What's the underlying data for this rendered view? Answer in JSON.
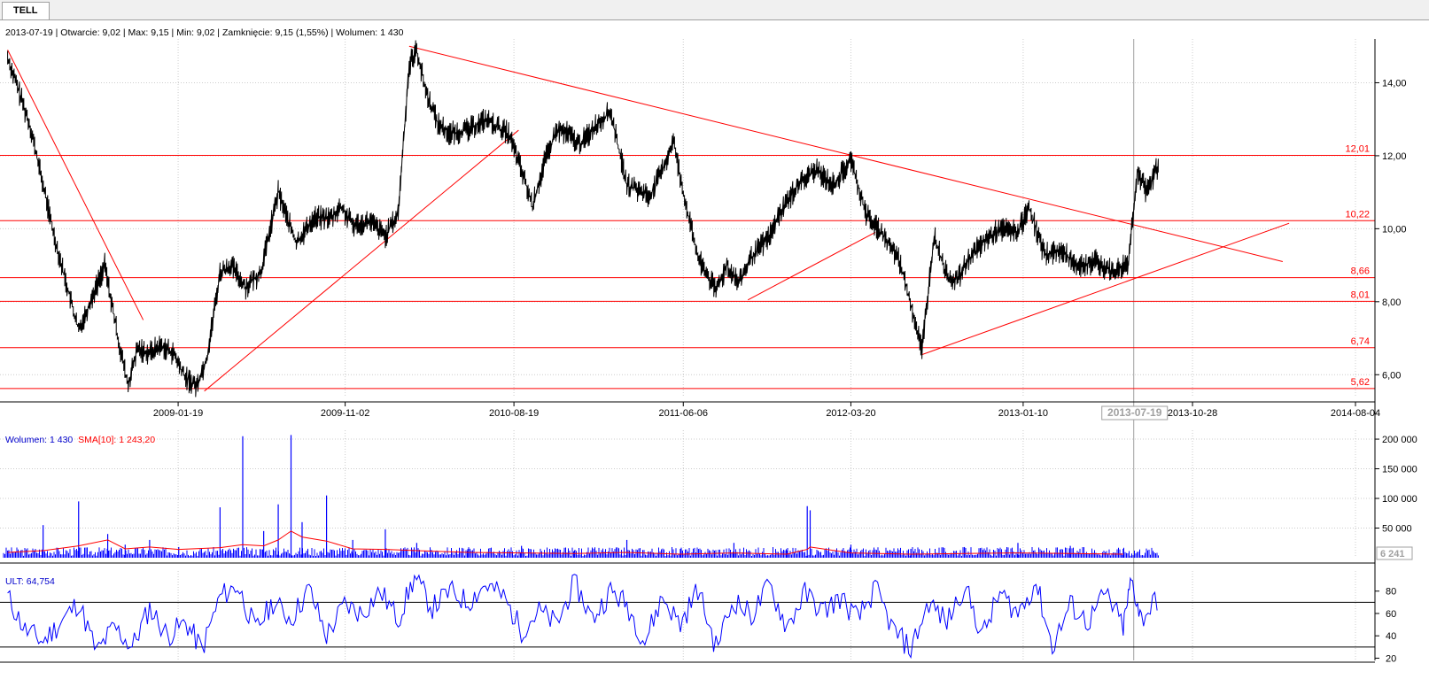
{
  "tab": {
    "label": "TELL"
  },
  "header": {
    "price_info": "2013-07-19 | Otwarcie: 9,02 | Max: 9,15 | Min: 9,02 | Zamknięcie: 9,15 (1,55%) | Wolumen: 1 430",
    "volume_label": "Wolumen: 1 430",
    "sma_label": "SMA[10]: 1 243,20",
    "ult_label": "ULT: 64,754"
  },
  "colors": {
    "price_line": "#000000",
    "trend_line": "#00aa00",
    "support_lines": "#ff0000",
    "volume": "#0000ff",
    "sma": "#ff0000",
    "ult": "#0000ff",
    "crosshair": "#a0a0a0"
  },
  "chart_data": [
    {
      "type": "line",
      "name": "price",
      "y_ticks": [
        "6,00",
        "8,00",
        "10,00",
        "12,00",
        "14,00"
      ],
      "y_tick_values": [
        6,
        8,
        10,
        12,
        14
      ],
      "ylim": [
        5.4,
        15.2
      ],
      "x_ticks": [
        "2009-01-19",
        "2009-11-02",
        "2010-08-19",
        "2011-06-06",
        "2012-03-20",
        "2013-01-10",
        "2013-10-28",
        "2014-08-04"
      ],
      "cursor_label": "2013-07-19",
      "horizontal_levels": [
        {
          "value": 12.01,
          "label": "12,01"
        },
        {
          "value": 10.22,
          "label": "10,22"
        },
        {
          "value": 8.66,
          "label": "8,66"
        },
        {
          "value": 8.01,
          "label": "8,01"
        },
        {
          "value": 6.74,
          "label": "6,74"
        },
        {
          "value": 5.62,
          "label": "5,62"
        }
      ],
      "trend_lines": [
        {
          "x": [
            "2008-04-01",
            "2008-11-20"
          ],
          "y": [
            14.9,
            7.5
          ]
        },
        {
          "x": [
            "2009-03-05",
            "2010-08-27"
          ],
          "y": [
            5.55,
            12.7
          ]
        },
        {
          "x": [
            "2010-02-20",
            "2014-04-01"
          ],
          "y": [
            15.0,
            9.1
          ]
        },
        {
          "x": [
            "2011-09-25",
            "2012-05-01"
          ],
          "y": [
            8.05,
            9.9
          ]
        },
        {
          "x": [
            "2012-07-20",
            "2014-04-12"
          ],
          "y": [
            6.55,
            10.15
          ]
        }
      ],
      "x": [
        "2008-04-01",
        "2008-05-10",
        "2008-06-20",
        "2008-08-01",
        "2008-09-15",
        "2008-10-10",
        "2008-10-25",
        "2008-11-10",
        "2008-12-01",
        "2008-12-20",
        "2009-01-10",
        "2009-02-01",
        "2009-02-20",
        "2009-03-10",
        "2009-04-01",
        "2009-04-20",
        "2009-05-15",
        "2009-06-10",
        "2009-07-10",
        "2009-08-10",
        "2009-09-10",
        "2009-10-10",
        "2009-10-25",
        "2009-11-15",
        "2009-12-15",
        "2010-01-10",
        "2010-02-01",
        "2010-02-20",
        "2010-03-05",
        "2010-03-20",
        "2010-04-10",
        "2010-05-01",
        "2010-06-01",
        "2010-07-01",
        "2010-07-20",
        "2010-08-10",
        "2010-09-01",
        "2010-09-20",
        "2010-10-10",
        "2010-11-01",
        "2010-11-20",
        "2010-12-10",
        "2011-01-10",
        "2011-02-01",
        "2011-03-01",
        "2011-04-10",
        "2011-05-01",
        "2011-05-20",
        "2011-06-10",
        "2011-07-01",
        "2011-08-01",
        "2011-08-20",
        "2011-09-10",
        "2011-10-01",
        "2011-11-01",
        "2011-11-25",
        "2011-12-20",
        "2012-01-20",
        "2012-02-20",
        "2012-03-20",
        "2012-04-15",
        "2012-05-10",
        "2012-06-10",
        "2012-06-30",
        "2012-07-20",
        "2012-08-10",
        "2012-09-01",
        "2012-09-20",
        "2012-10-10",
        "2012-11-01",
        "2012-12-01",
        "2013-01-01",
        "2013-01-20",
        "2013-02-15",
        "2013-03-15",
        "2013-04-15",
        "2013-05-15",
        "2013-06-15",
        "2013-07-10",
        "2013-07-25",
        "2013-08-10",
        "2013-09-01"
      ],
      "y": [
        14.7,
        12.8,
        9.8,
        7.2,
        9.0,
        6.8,
        5.7,
        6.7,
        6.6,
        6.8,
        6.6,
        5.9,
        5.7,
        6.5,
        8.8,
        9.0,
        8.4,
        8.8,
        11.0,
        9.6,
        10.3,
        10.3,
        10.6,
        10.1,
        10.2,
        9.8,
        10.4,
        14.5,
        14.9,
        13.8,
        12.9,
        12.6,
        12.7,
        13.0,
        12.8,
        12.6,
        11.6,
        10.6,
        11.8,
        12.7,
        12.6,
        12.3,
        12.9,
        13.2,
        11.2,
        10.9,
        11.6,
        12.4,
        10.7,
        9.2,
        8.3,
        9.0,
        8.5,
        9.2,
        9.8,
        10.6,
        11.2,
        11.6,
        11.2,
        11.9,
        10.4,
        9.9,
        9.2,
        8.0,
        6.7,
        9.8,
        8.7,
        8.6,
        9.2,
        9.6,
        10.0,
        9.9,
        10.6,
        9.3,
        9.4,
        9.0,
        9.1,
        8.8,
        9.1,
        11.6,
        11.0,
        11.8
      ]
    },
    {
      "type": "bar",
      "name": "volume",
      "y_ticks": [
        "50 000",
        "100 000",
        "150 000",
        "200 000"
      ],
      "y_tick_values": [
        50000,
        100000,
        150000,
        200000
      ],
      "ylim": [
        0,
        215000
      ],
      "last_value_label": "6 241",
      "x": [
        "2008-04-01",
        "2008-06-01",
        "2008-08-01",
        "2008-09-20",
        "2008-10-20",
        "2008-12-01",
        "2009-01-20",
        "2009-04-01",
        "2009-05-10",
        "2009-06-15",
        "2009-07-10",
        "2009-08-01",
        "2009-08-20",
        "2009-10-01",
        "2009-11-15",
        "2010-01-10",
        "2010-03-05",
        "2010-06-01",
        "2010-09-01",
        "2010-12-01",
        "2011-03-01",
        "2011-06-01",
        "2011-09-01",
        "2011-12-01",
        "2012-01-05",
        "2012-01-10",
        "2012-03-20",
        "2012-07-01",
        "2012-10-01",
        "2013-01-01",
        "2013-04-01",
        "2013-07-01"
      ],
      "values": [
        12000,
        55000,
        95000,
        40000,
        22000,
        30000,
        18000,
        85000,
        205000,
        45000,
        90000,
        207000,
        60000,
        105000,
        30000,
        48000,
        25000,
        15000,
        20000,
        12000,
        30000,
        15000,
        25000,
        12000,
        87000,
        80000,
        22000,
        15000,
        18000,
        25000,
        20000,
        15000
      ],
      "sma_values": [
        9000,
        12000,
        20000,
        30000,
        15000,
        18000,
        14000,
        17000,
        22000,
        20000,
        30000,
        45000,
        35000,
        28000,
        15000,
        14000,
        12000,
        9000,
        8000,
        7000,
        9000,
        6000,
        8000,
        6000,
        14000,
        18000,
        8000,
        6000,
        7000,
        8000,
        7000,
        6000
      ]
    },
    {
      "type": "line",
      "name": "ult",
      "y_ticks": [
        "20",
        "40",
        "60",
        "80"
      ],
      "y_tick_values": [
        20,
        40,
        60,
        80
      ],
      "ylim": [
        18,
        98
      ],
      "reference_levels": [
        70,
        30
      ],
      "x": [
        "2008-04-01",
        "2008-05-01",
        "2008-06-01",
        "2008-07-01",
        "2008-08-01",
        "2008-09-01",
        "2008-10-01",
        "2008-11-01",
        "2008-12-01",
        "2009-01-01",
        "2009-02-01",
        "2009-03-01",
        "2009-04-01",
        "2009-05-01",
        "2009-06-01",
        "2009-07-01",
        "2009-08-01",
        "2009-09-01",
        "2009-10-01",
        "2009-11-01",
        "2009-12-01",
        "2010-01-01",
        "2010-02-01",
        "2010-03-01",
        "2010-04-01",
        "2010-05-01",
        "2010-06-01",
        "2010-07-01",
        "2010-08-01",
        "2010-09-01",
        "2010-10-01",
        "2010-11-01",
        "2010-12-01",
        "2011-01-01",
        "2011-02-01",
        "2011-03-01",
        "2011-04-01",
        "2011-05-01",
        "2011-06-01",
        "2011-07-01",
        "2011-08-01",
        "2011-09-01",
        "2011-10-01",
        "2011-11-01",
        "2011-12-01",
        "2012-01-01",
        "2012-02-01",
        "2012-03-01",
        "2012-04-01",
        "2012-05-01",
        "2012-06-01",
        "2012-07-01",
        "2012-08-01",
        "2012-09-01",
        "2012-10-01",
        "2012-11-01",
        "2012-12-01",
        "2013-01-01",
        "2013-02-01",
        "2013-03-01",
        "2013-04-01",
        "2013-05-01",
        "2013-06-01",
        "2013-07-01",
        "2013-07-15",
        "2013-08-01",
        "2013-09-01"
      ],
      "values": [
        75,
        45,
        35,
        52,
        70,
        25,
        48,
        30,
        65,
        40,
        52,
        28,
        75,
        85,
        45,
        70,
        55,
        82,
        40,
        68,
        60,
        80,
        55,
        92,
        65,
        80,
        70,
        86,
        75,
        45,
        62,
        50,
        88,
        55,
        80,
        68,
        35,
        75,
        50,
        82,
        30,
        72,
        58,
        85,
        48,
        78,
        62,
        74,
        55,
        82,
        45,
        28,
        70,
        52,
        85,
        40,
        78,
        60,
        88,
        30,
        68,
        52,
        78,
        48,
        90,
        55,
        75
      ]
    }
  ]
}
